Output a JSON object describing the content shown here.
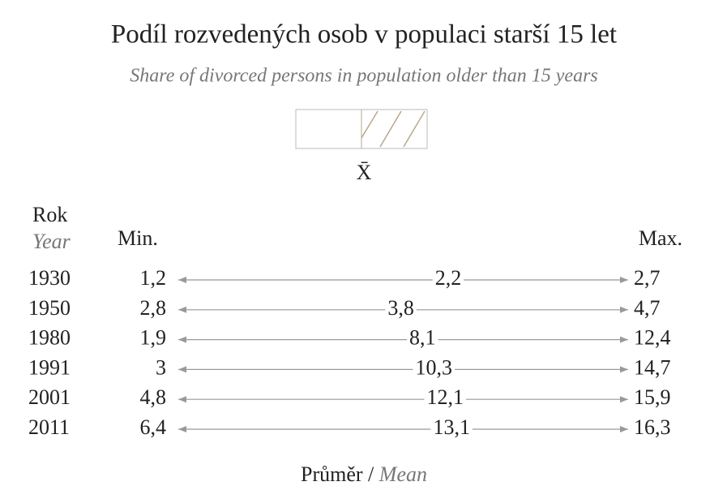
{
  "header": {
    "title": "Podíl rozvedených osob v populaci starší 15 let",
    "subtitle": "Share of divorced persons in population older than 15 years"
  },
  "legend": {
    "symbol": "X̄"
  },
  "table": {
    "headers": {
      "year": "Rok",
      "year_en": "Year",
      "min": "Min.",
      "max": "Max."
    },
    "rows": [
      [
        "1930",
        "1,2",
        "2,2",
        "2,7"
      ],
      [
        "1950",
        "2,8",
        "3,8",
        "4,7"
      ],
      [
        "1980",
        "1,9",
        "8,1",
        "12,4"
      ],
      [
        "1991",
        "3",
        "10,3",
        "14,7"
      ],
      [
        "2001",
        "4,8",
        "12,1",
        "15,9"
      ],
      [
        "2011",
        "6,4",
        "13,1",
        "16,3"
      ]
    ]
  },
  "footer": {
    "label": "Průměr /",
    "label_en": "Mean"
  }
}
